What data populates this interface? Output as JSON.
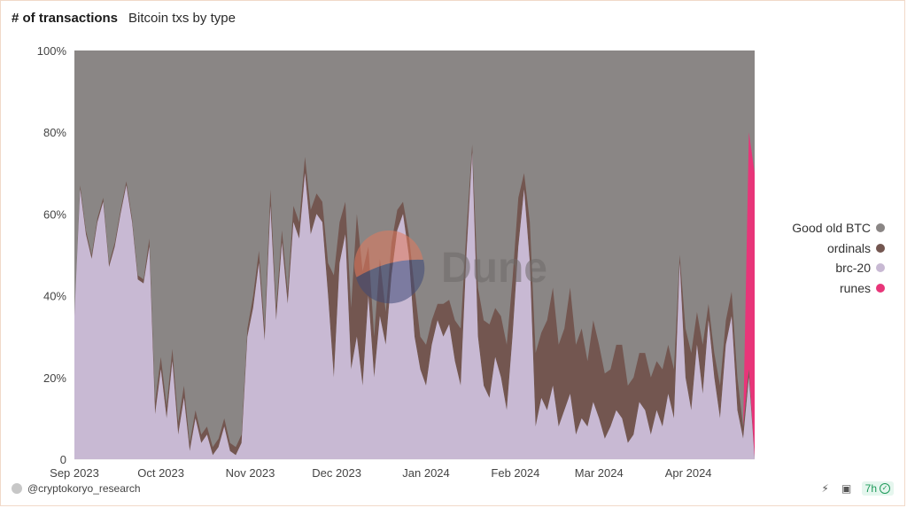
{
  "header": {
    "title": "# of transactions",
    "subtitle": "Bitcoin txs by type"
  },
  "watermark": "Dune",
  "footer": {
    "author": "@cryptokoryo_research",
    "refresh": "7h",
    "icons": [
      "lightning-share-icon",
      "camera-icon",
      "check-circle-icon"
    ]
  },
  "colors": {
    "good_old_btc": "#8a8685",
    "ordinals": "#735650",
    "brc20": "#c8b9d3",
    "runes": "#e83579"
  },
  "chart_data": {
    "type": "area",
    "stacked": true,
    "normalized": true,
    "ylim": [
      0,
      100
    ],
    "y_ticks": [
      "0",
      "20%",
      "40%",
      "60%",
      "80%",
      "100%"
    ],
    "x_ticks": [
      "Sep 2023",
      "Oct 2023",
      "Nov 2023",
      "Dec 2023",
      "Jan 2024",
      "Feb 2024",
      "Mar 2024",
      "Apr 2024"
    ],
    "x_range": [
      "2023-09-01",
      "2024-04-24"
    ],
    "legend": [
      "Good old BTC",
      "ordinals",
      "brc-20",
      "runes"
    ],
    "legend_position": "right",
    "x": [
      "2023-09-01",
      "2023-09-03",
      "2023-09-05",
      "2023-09-07",
      "2023-09-09",
      "2023-09-11",
      "2023-09-13",
      "2023-09-15",
      "2023-09-17",
      "2023-09-19",
      "2023-09-21",
      "2023-09-23",
      "2023-09-25",
      "2023-09-27",
      "2023-09-29",
      "2023-10-01",
      "2023-10-03",
      "2023-10-05",
      "2023-10-07",
      "2023-10-09",
      "2023-10-11",
      "2023-10-13",
      "2023-10-15",
      "2023-10-17",
      "2023-10-19",
      "2023-10-21",
      "2023-10-23",
      "2023-10-25",
      "2023-10-27",
      "2023-10-29",
      "2023-10-31",
      "2023-11-02",
      "2023-11-04",
      "2023-11-06",
      "2023-11-08",
      "2023-11-10",
      "2023-11-12",
      "2023-11-14",
      "2023-11-16",
      "2023-11-18",
      "2023-11-20",
      "2023-11-22",
      "2023-11-24",
      "2023-11-26",
      "2023-11-28",
      "2023-11-30",
      "2023-12-02",
      "2023-12-04",
      "2023-12-06",
      "2023-12-08",
      "2023-12-10",
      "2023-12-12",
      "2023-12-14",
      "2023-12-16",
      "2023-12-18",
      "2023-12-20",
      "2023-12-22",
      "2023-12-24",
      "2023-12-26",
      "2023-12-28",
      "2023-12-30",
      "2024-01-01",
      "2024-01-03",
      "2024-01-05",
      "2024-01-07",
      "2024-01-09",
      "2024-01-11",
      "2024-01-13",
      "2024-01-15",
      "2024-01-17",
      "2024-01-19",
      "2024-01-21",
      "2024-01-23",
      "2024-01-25",
      "2024-01-27",
      "2024-01-29",
      "2024-01-31",
      "2024-02-02",
      "2024-02-04",
      "2024-02-06",
      "2024-02-08",
      "2024-02-10",
      "2024-02-12",
      "2024-02-14",
      "2024-02-16",
      "2024-02-18",
      "2024-02-20",
      "2024-02-22",
      "2024-02-24",
      "2024-02-26",
      "2024-02-28",
      "2024-03-01",
      "2024-03-03",
      "2024-03-05",
      "2024-03-07",
      "2024-03-09",
      "2024-03-11",
      "2024-03-13",
      "2024-03-15",
      "2024-03-17",
      "2024-03-19",
      "2024-03-21",
      "2024-03-23",
      "2024-03-25",
      "2024-03-27",
      "2024-03-29",
      "2024-03-31",
      "2024-04-02",
      "2024-04-04",
      "2024-04-06",
      "2024-04-08",
      "2024-04-10",
      "2024-04-12",
      "2024-04-14",
      "2024-04-16",
      "2024-04-18",
      "2024-04-20",
      "2024-04-22",
      "2024-04-24"
    ],
    "series": [
      {
        "name": "brc-20",
        "color_key": "brc20",
        "values": [
          35,
          66,
          55,
          49,
          58,
          63,
          47,
          52,
          60,
          67,
          58,
          44,
          43,
          52,
          11,
          22,
          10,
          24,
          6,
          15,
          2,
          10,
          4,
          6,
          1,
          3,
          8,
          2,
          1,
          4,
          30,
          37,
          48,
          29,
          62,
          34,
          53,
          38,
          58,
          54,
          70,
          55,
          60,
          58,
          40,
          20,
          48,
          55,
          22,
          30,
          18,
          40,
          20,
          35,
          28,
          45,
          56,
          60,
          50,
          30,
          22,
          18,
          28,
          34,
          30,
          33,
          24,
          18,
          50,
          75,
          30,
          18,
          15,
          25,
          20,
          12,
          30,
          52,
          66,
          48,
          8,
          15,
          12,
          18,
          8,
          12,
          16,
          6,
          10,
          8,
          14,
          10,
          5,
          8,
          12,
          10,
          4,
          6,
          14,
          12,
          6,
          12,
          8,
          16,
          10,
          48,
          20,
          12,
          28,
          16,
          34,
          20,
          10,
          28,
          35,
          12,
          5,
          20,
          0
        ]
      },
      {
        "name": "ordinals",
        "color_key": "ordinals",
        "values": [
          0,
          1,
          1,
          1,
          1,
          1,
          1,
          1,
          1,
          1,
          1,
          1,
          1,
          2,
          3,
          3,
          3,
          3,
          3,
          3,
          2,
          2,
          2,
          2,
          2,
          2,
          2,
          2,
          2,
          2,
          2,
          3,
          3,
          3,
          4,
          3,
          3,
          3,
          4,
          4,
          4,
          6,
          5,
          5,
          8,
          25,
          10,
          8,
          15,
          30,
          28,
          12,
          10,
          14,
          8,
          8,
          5,
          3,
          5,
          12,
          8,
          10,
          6,
          4,
          8,
          6,
          10,
          14,
          6,
          2,
          12,
          16,
          18,
          12,
          15,
          16,
          14,
          12,
          4,
          10,
          18,
          16,
          22,
          24,
          20,
          20,
          26,
          22,
          22,
          16,
          20,
          18,
          16,
          14,
          16,
          18,
          14,
          14,
          12,
          14,
          14,
          12,
          14,
          12,
          12,
          2,
          12,
          14,
          8,
          12,
          4,
          6,
          8,
          6,
          6,
          8,
          3,
          2,
          0
        ]
      },
      {
        "name": "runes",
        "color_key": "runes",
        "values": [
          0,
          0,
          0,
          0,
          0,
          0,
          0,
          0,
          0,
          0,
          0,
          0,
          0,
          0,
          0,
          0,
          0,
          0,
          0,
          0,
          0,
          0,
          0,
          0,
          0,
          0,
          0,
          0,
          0,
          0,
          0,
          0,
          0,
          0,
          0,
          0,
          0,
          0,
          0,
          0,
          0,
          0,
          0,
          0,
          0,
          0,
          0,
          0,
          0,
          0,
          0,
          0,
          0,
          0,
          0,
          0,
          0,
          0,
          0,
          0,
          0,
          0,
          0,
          0,
          0,
          0,
          0,
          0,
          0,
          0,
          0,
          0,
          0,
          0,
          0,
          0,
          0,
          0,
          0,
          0,
          0,
          0,
          0,
          0,
          0,
          0,
          0,
          0,
          0,
          0,
          0,
          0,
          0,
          0,
          0,
          0,
          0,
          0,
          0,
          0,
          0,
          0,
          0,
          0,
          0,
          0,
          0,
          0,
          0,
          0,
          0,
          0,
          0,
          0,
          0,
          0,
          0,
          58,
          70
        ]
      },
      {
        "name": "Good old BTC",
        "color_key": "good_old_btc",
        "values": "remainder to 100%"
      }
    ]
  }
}
